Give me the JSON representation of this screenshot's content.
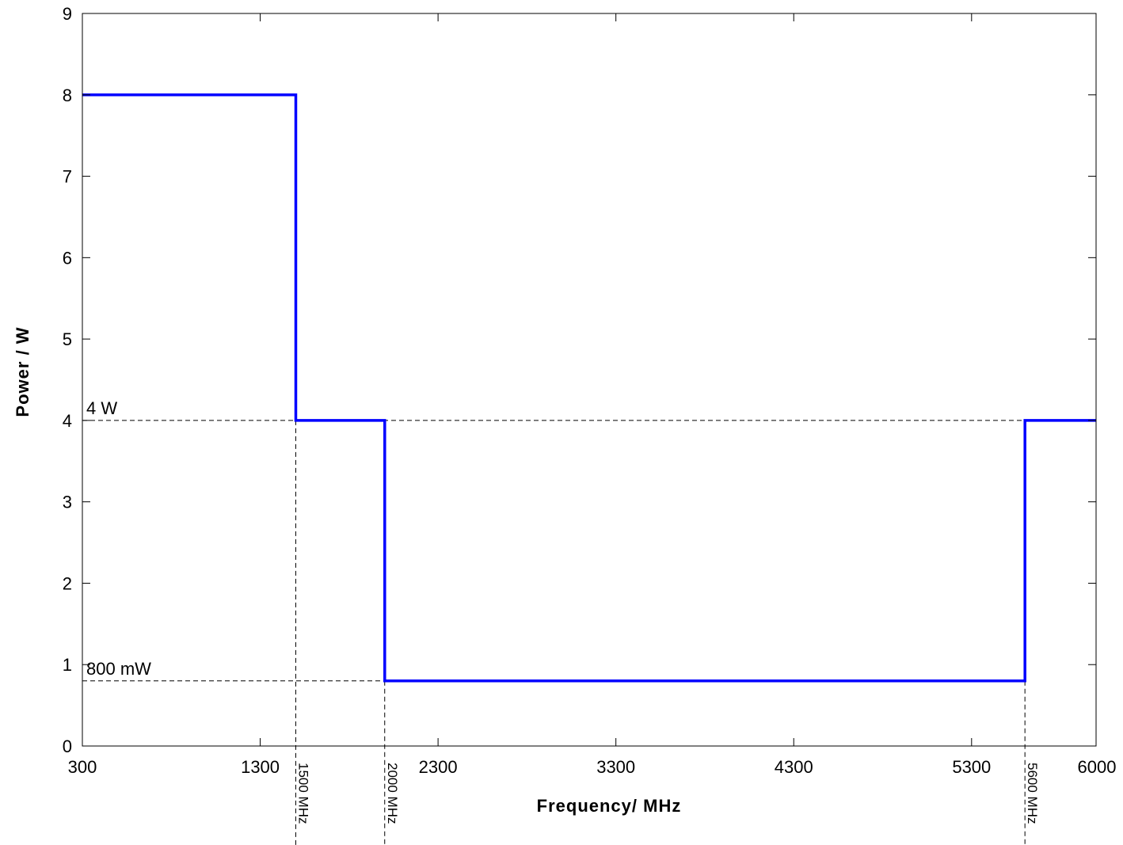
{
  "chart_data": {
    "type": "line",
    "title": "",
    "xlabel": "Frequency/ MHz",
    "ylabel": "Power / W",
    "xlim": [
      300,
      6000
    ],
    "ylim": [
      0,
      9
    ],
    "xticks": [
      300,
      1300,
      2300,
      3300,
      4300,
      5300,
      6000
    ],
    "yticks": [
      0,
      1,
      2,
      3,
      4,
      5,
      6,
      7,
      8,
      9
    ],
    "grid": false,
    "series": [
      {
        "color": "#0000ff",
        "x": [
          300,
          1500,
          1500,
          2000,
          2000,
          5600,
          5600,
          6000
        ],
        "y": [
          8,
          8,
          4,
          4,
          0.8,
          0.8,
          4,
          4
        ]
      }
    ],
    "reference_lines": [
      {
        "orientation": "horizontal",
        "value": 4,
        "label": "4  W"
      },
      {
        "orientation": "horizontal",
        "value": 0.8,
        "label": "800 mW"
      },
      {
        "orientation": "vertical",
        "value": 1500,
        "label": "1500 MHz"
      },
      {
        "orientation": "vertical",
        "value": 2000,
        "label": "2000 MHz"
      },
      {
        "orientation": "vertical",
        "value": 5600,
        "label": "5600 MHz"
      }
    ]
  }
}
